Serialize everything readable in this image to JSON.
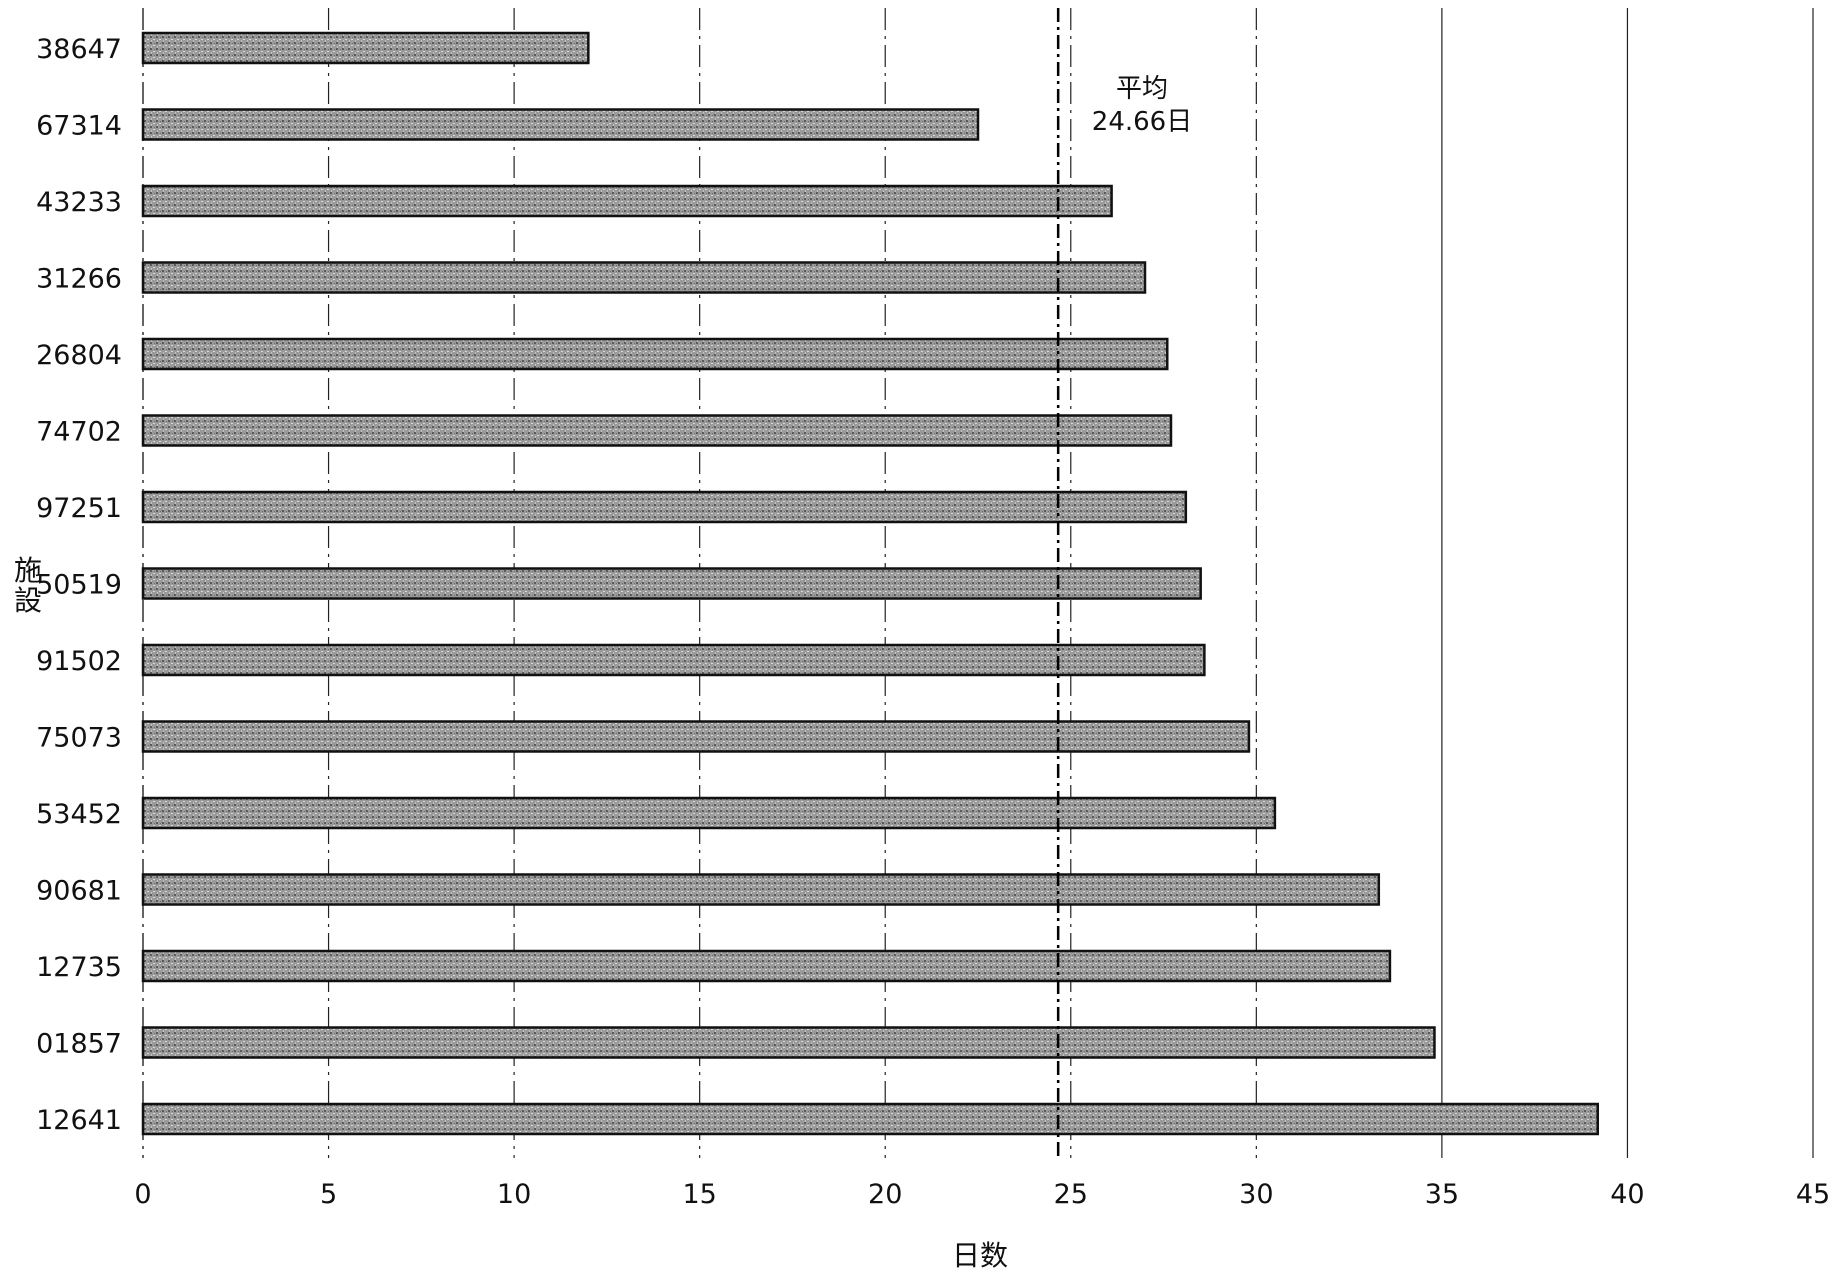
{
  "chart_data": {
    "type": "bar",
    "orientation": "horizontal",
    "categories": [
      "38647",
      "67314",
      "43233",
      "31266",
      "26804",
      "74702",
      "97251",
      "50519",
      "91502",
      "75073",
      "53452",
      "90681",
      "12735",
      "01857",
      "12641"
    ],
    "values": [
      12.0,
      22.5,
      26.1,
      27.0,
      27.6,
      27.7,
      28.1,
      28.5,
      28.6,
      29.8,
      30.5,
      33.3,
      33.6,
      34.8,
      39.2
    ],
    "xlim": [
      0,
      45
    ],
    "xticks": [
      0,
      5,
      10,
      15,
      20,
      25,
      30,
      35,
      40,
      45
    ],
    "xlabel": "日数",
    "ylabel": "施設",
    "grid": true,
    "mean_line": {
      "value": 24.66,
      "label_line1": "平均",
      "label_line2": "24.66日"
    },
    "bar_fill": "#9a9a9a",
    "bar_stroke": "#111111"
  }
}
